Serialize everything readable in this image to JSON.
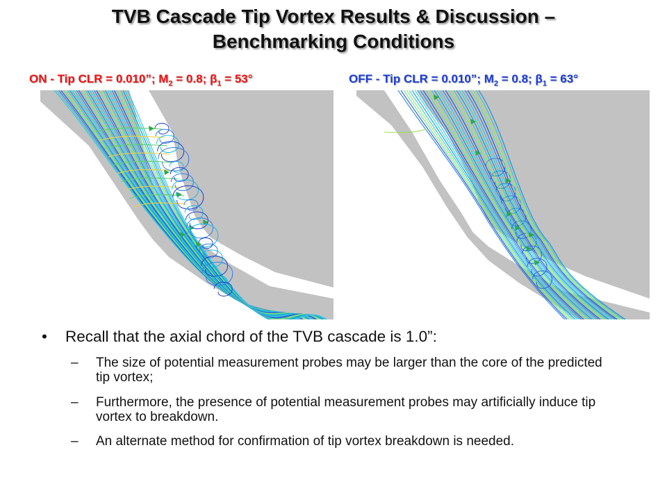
{
  "slide": {
    "title_line1": "TVB Cascade Tip Vortex Results & Discussion –",
    "title_line2": "Benchmarking Conditions",
    "captions": {
      "left": {
        "state": "ON - Tip CLR = 0.010”; M",
        "m_sub": "2",
        "mid": " = 0.8; ",
        "beta": "β",
        "beta_sub": "1",
        "value": " = 53°"
      },
      "right": {
        "state": "OFF - Tip CLR = 0.010”; M",
        "m_sub": "2",
        "mid": " = 0.8; ",
        "beta": "β",
        "beta_sub": "1",
        "value": " = 63°"
      }
    },
    "bullet": {
      "symbol": "•",
      "text": "Recall that the axial chord of the TVB cascade is 1.0”:"
    },
    "sub_bullets": [
      {
        "dash": "–",
        "text": "The size of potential measurement probes may be larger than the core of the predicted tip vortex;"
      },
      {
        "dash": "–",
        "text": "Furthermore, the presence of potential measurement probes may artificially induce tip vortex to breakdown."
      },
      {
        "dash": "–",
        "text": "An alternate method for confirmation of tip vortex breakdown is needed."
      }
    ],
    "colors": {
      "caption_on": "#ee1111",
      "caption_off": "#1a3cd6",
      "blade": "#c2c2c2",
      "gap": "#ffffff"
    }
  }
}
